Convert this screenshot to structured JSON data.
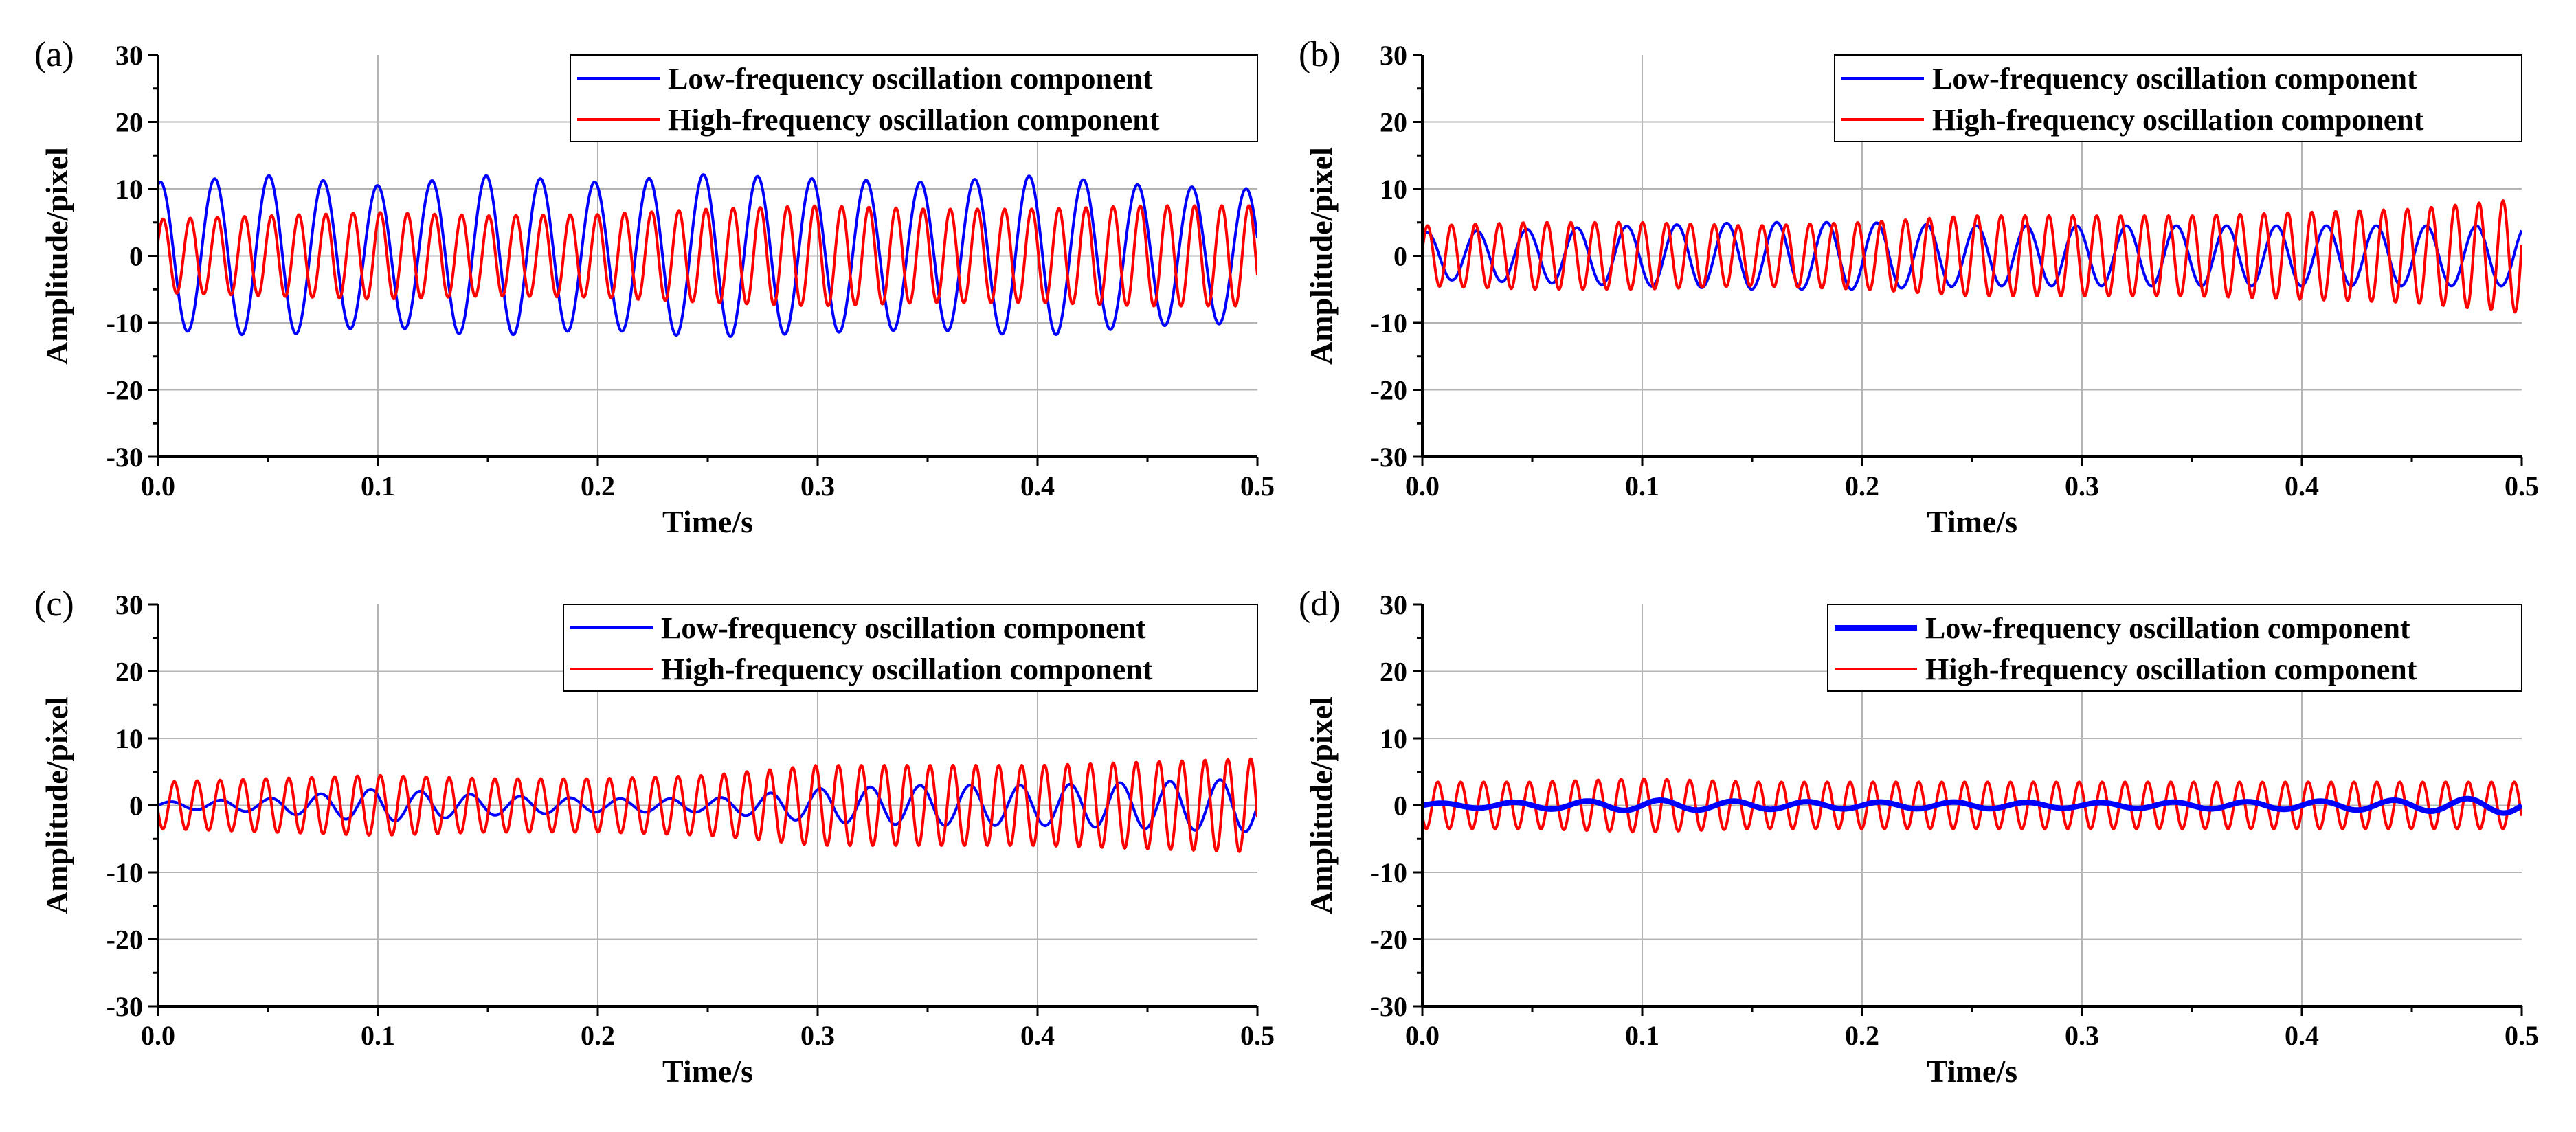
{
  "figure": {
    "description_note": ""
  },
  "chart_data": [
    {
      "type": "line",
      "panel_label": "(a)",
      "xlabel": "Time/s",
      "ylabel": "Amplitude/pixel",
      "xlim": [
        0.0,
        0.5
      ],
      "ylim": [
        -30,
        30
      ],
      "xticks": [
        "0.0",
        "0.1",
        "0.2",
        "0.3",
        "0.4",
        "0.5"
      ],
      "yticks": [
        "-30",
        "-20",
        "-10",
        "0",
        "10",
        "20",
        "30"
      ],
      "grid": true,
      "legend_position": "top-right",
      "series": [
        {
          "name": "Low-frequency oscillation component",
          "color": "#0000ff",
          "frequency_hz": 40.5,
          "amplitude": [
            11,
            12,
            10.5,
            12,
            11,
            12.2,
            11.5,
            11,
            12,
            10.5,
            10
          ],
          "phase": 1.3,
          "stroke": 4
        },
        {
          "name": "High-frequency oscillation component",
          "color": "#ff0000",
          "frequency_hz": 81.0,
          "amplitude": [
            5.5,
            6,
            6.5,
            6,
            6.2,
            7,
            7.5,
            7,
            7,
            7.5,
            7.5
          ],
          "phase": 0.4,
          "stroke": 4
        }
      ]
    },
    {
      "type": "line",
      "panel_label": "(b)",
      "xlabel": "Time/s",
      "ylabel": "Amplitude/pixel",
      "xlim": [
        0.0,
        0.5
      ],
      "ylim": [
        -30,
        30
      ],
      "xticks": [
        "0.0",
        "0.1",
        "0.2",
        "0.3",
        "0.4",
        "0.5"
      ],
      "yticks": [
        "-30",
        "-20",
        "-10",
        "0",
        "10",
        "20",
        "30"
      ],
      "grid": true,
      "legend_position": "top-right",
      "series": [
        {
          "name": "Low-frequency oscillation component",
          "color": "#0000ff",
          "frequency_hz": 44.0,
          "amplitude": [
            3.5,
            4,
            4.5,
            5,
            5,
            4.5,
            4.5,
            4.5,
            4.5,
            4.5,
            4.5
          ],
          "phase": 1.0,
          "stroke": 4
        },
        {
          "name": "High-frequency oscillation component",
          "color": "#ff0000",
          "frequency_hz": 92.0,
          "amplitude": [
            4.5,
            5,
            5,
            4.5,
            5,
            6,
            6,
            6,
            6.5,
            7,
            8.5
          ],
          "phase": 0.2,
          "stroke": 4
        }
      ]
    },
    {
      "type": "line",
      "panel_label": "(c)",
      "xlabel": "Time/s",
      "ylabel": "Amplitude/pixel",
      "xlim": [
        0.0,
        0.5
      ],
      "ylim": [
        -30,
        30
      ],
      "xticks": [
        "0.0",
        "0.1",
        "0.2",
        "0.3",
        "0.4",
        "0.5"
      ],
      "yticks": [
        "-30",
        "-20",
        "-10",
        "0",
        "10",
        "20",
        "30"
      ],
      "grid": true,
      "legend_position": "top-right",
      "series": [
        {
          "name": "Low-frequency oscillation component",
          "color": "#0000ff",
          "frequency_hz": 44.0,
          "amplitude": [
            0.5,
            1,
            2.5,
            1.5,
            1,
            1,
            2.5,
            3,
            3,
            3.5,
            4
          ],
          "phase": 0.0,
          "stroke": 4
        },
        {
          "name": "High-frequency oscillation component",
          "color": "#ff0000",
          "frequency_hz": 96.0,
          "amplitude": [
            3.5,
            4,
            4.5,
            4,
            4,
            4.5,
            6,
            6,
            6,
            6.5,
            7
          ],
          "phase": 3.4,
          "stroke": 4
        }
      ]
    },
    {
      "type": "line",
      "panel_label": "(d)",
      "xlabel": "Time/s",
      "ylabel": "Amplitude/pixel",
      "xlim": [
        0.0,
        0.5
      ],
      "ylim": [
        -30,
        30
      ],
      "xticks": [
        "0.0",
        "0.1",
        "0.2",
        "0.3",
        "0.4",
        "0.5"
      ],
      "yticks": [
        "-30",
        "-20",
        "-10",
        "0",
        "10",
        "20",
        "30"
      ],
      "grid": true,
      "legend_position": "top-right",
      "series": [
        {
          "name": "High-frequency oscillation component",
          "color": "#ff0000",
          "frequency_hz": 96.0,
          "amplitude": [
            3.5,
            3.5,
            4,
            3.5,
            3.5,
            3.5,
            3.5,
            3.5,
            3.5,
            3.5,
            3.5
          ],
          "phase": 3.6,
          "stroke": 4
        },
        {
          "name": "Low-frequency oscillation component",
          "color": "#0000ff",
          "frequency_hz": 30.0,
          "amplitude": [
            0.3,
            0.5,
            0.8,
            0.6,
            0.5,
            0.5,
            0.4,
            0.5,
            0.6,
            0.8,
            1.2
          ],
          "phase": 0.0,
          "stroke": 8
        }
      ],
      "legend_order": [
        "Low-frequency oscillation component",
        "High-frequency oscillation component"
      ]
    }
  ]
}
